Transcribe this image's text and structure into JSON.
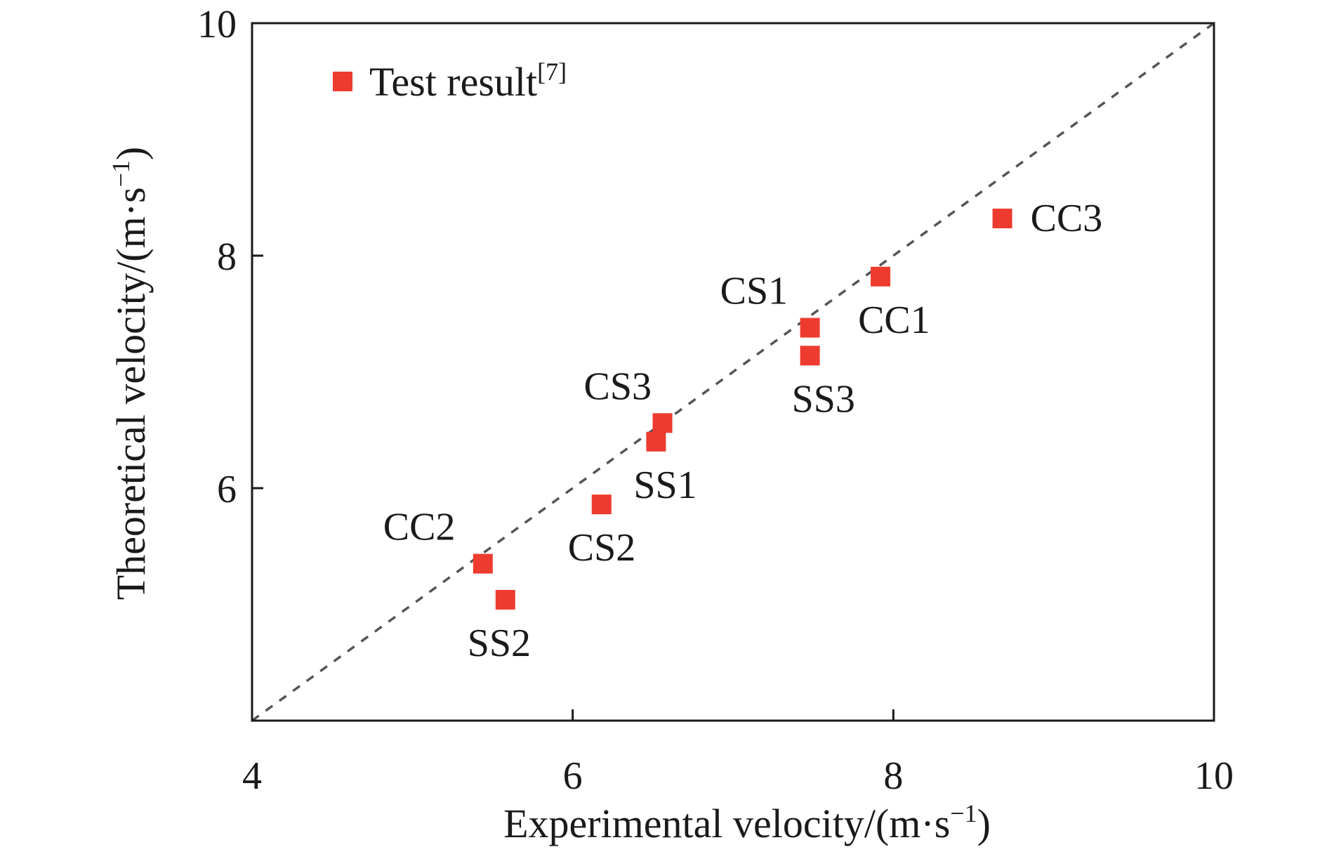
{
  "chart_data": {
    "type": "scatter",
    "xlabel": {
      "main": "Experimental velocity/(m·s",
      "sup": "−1",
      "tail": ")"
    },
    "ylabel": {
      "main": "Theoretical velocity/(m·s",
      "sup": "−1",
      "tail": ")"
    },
    "xlim": [
      4,
      10
    ],
    "ylim": [
      4,
      10
    ],
    "x_ticks": [
      "4",
      "6",
      "8",
      "10"
    ],
    "y_ticks": [
      "6",
      "8",
      "10"
    ],
    "reference_line": {
      "from": [
        4,
        4
      ],
      "to": [
        10,
        10
      ],
      "style": "dashed"
    },
    "legend": {
      "main": "Test result",
      "sup": "[7]",
      "placement": "top-left"
    },
    "marker_color": "#ee3b2f",
    "series": [
      {
        "name": "Test result",
        "points": [
          {
            "label": "CC3",
            "x": 8.68,
            "y": 8.32
          },
          {
            "label": "CC1",
            "x": 7.92,
            "y": 7.82
          },
          {
            "label": "CS1",
            "x": 7.48,
            "y": 7.38
          },
          {
            "label": "SS3",
            "x": 7.48,
            "y": 7.14
          },
          {
            "label": "CS3",
            "x": 6.56,
            "y": 6.56
          },
          {
            "label": "SS1",
            "x": 6.52,
            "y": 6.4
          },
          {
            "label": "CS2",
            "x": 6.18,
            "y": 5.86
          },
          {
            "label": "CC2",
            "x": 5.44,
            "y": 5.35
          },
          {
            "label": "SS2",
            "x": 5.58,
            "y": 5.04
          }
        ]
      }
    ]
  }
}
